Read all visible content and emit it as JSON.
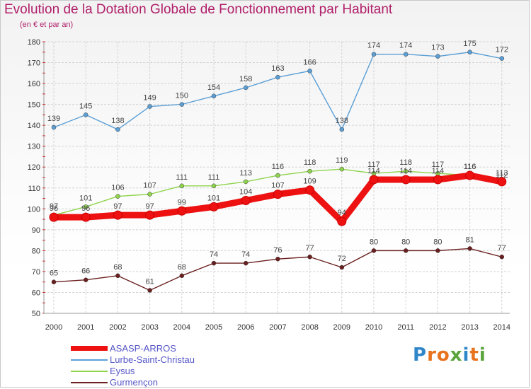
{
  "header": {
    "title": "Evolution de la Dotation Globale de Fonctionnement par Habitant",
    "subtitle": "(en € et par an)"
  },
  "logo": {
    "text": "Proxiti",
    "letters": [
      "P",
      "r",
      "o",
      "x",
      "i",
      "t",
      "i"
    ],
    "colors": [
      "#2f86c9",
      "#e8731e",
      "#e8731e",
      "#5aa53c",
      "#2f86c9",
      "#e8731e",
      "#5aa53c"
    ]
  },
  "chart_data": {
    "type": "line",
    "title": "Evolution de la Dotation Globale de Fonctionnement par Habitant",
    "subtitle": "(en € et par an)",
    "x": [
      2000,
      2001,
      2002,
      2003,
      2004,
      2005,
      2006,
      2007,
      2008,
      2009,
      2010,
      2011,
      2012,
      2013,
      2014
    ],
    "ylim": [
      50,
      180
    ],
    "yticks": [
      50,
      60,
      70,
      80,
      90,
      100,
      110,
      120,
      130,
      140,
      150,
      160,
      170,
      180
    ],
    "grid": true,
    "legend_position": "bottom-left",
    "series": [
      {
        "name": "Lurbe-Saint-Christau",
        "color": "#5b9fd6",
        "values": [
          139,
          145,
          138,
          149,
          150,
          154,
          158,
          163,
          166,
          138,
          174,
          174,
          173,
          175,
          172
        ]
      },
      {
        "name": "Eysus",
        "color": "#8fd44c",
        "values": [
          97,
          101,
          106,
          107,
          111,
          111,
          113,
          116,
          118,
          119,
          117,
          118,
          117,
          116,
          112
        ]
      },
      {
        "name": "Gurmençon",
        "color": "#6b1f1f",
        "values": [
          65,
          66,
          68,
          61,
          68,
          74,
          74,
          76,
          77,
          72,
          80,
          80,
          80,
          81,
          77
        ]
      },
      {
        "name": "ASASP-ARROS",
        "color": "#ee1111",
        "values": [
          96,
          96,
          97,
          97,
          99,
          101,
          104,
          107,
          109,
          94,
          114,
          114,
          114,
          116,
          113
        ]
      }
    ],
    "legend_order": [
      "ASASP-ARROS",
      "Lurbe-Saint-Christau",
      "Eysus",
      "Gurmençon"
    ]
  }
}
